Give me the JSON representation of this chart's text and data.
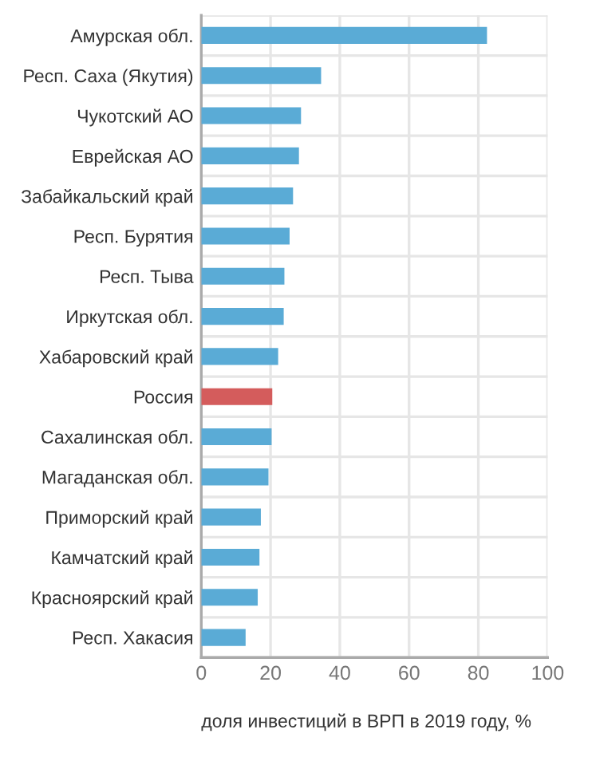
{
  "chart_data": {
    "type": "bar",
    "orientation": "horizontal",
    "categories": [
      "Амурская обл.",
      "Респ. Саха (Якутия)",
      "Чукотский АО",
      "Еврейская АО",
      "Забайкальский край",
      "Респ. Бурятия",
      "Респ. Тыва",
      "Иркутская обл.",
      "Хабаровский край",
      "Россия",
      "Сахалинская обл.",
      "Магаданская обл.",
      "Приморский край",
      "Камчатский край",
      "Красноярский край",
      "Респ. Хакасия"
    ],
    "values": [
      82.5,
      34.6,
      28.8,
      28.2,
      26.5,
      25.5,
      24,
      23.8,
      22.2,
      20.5,
      20.3,
      19.4,
      17.2,
      16.8,
      16.3,
      12.8
    ],
    "colors": [
      "#5aabd6",
      "#5aabd6",
      "#5aabd6",
      "#5aabd6",
      "#5aabd6",
      "#5aabd6",
      "#5aabd6",
      "#5aabd6",
      "#5aabd6",
      "#d45c5c",
      "#5aabd6",
      "#5aabd6",
      "#5aabd6",
      "#5aabd6",
      "#5aabd6",
      "#5aabd6"
    ],
    "xlim": [
      0,
      100
    ],
    "xticks": [
      0,
      20,
      40,
      60,
      80,
      100
    ],
    "xlabel": "доля инвестиций в ВРП в 2019 году, %",
    "grid": true
  }
}
